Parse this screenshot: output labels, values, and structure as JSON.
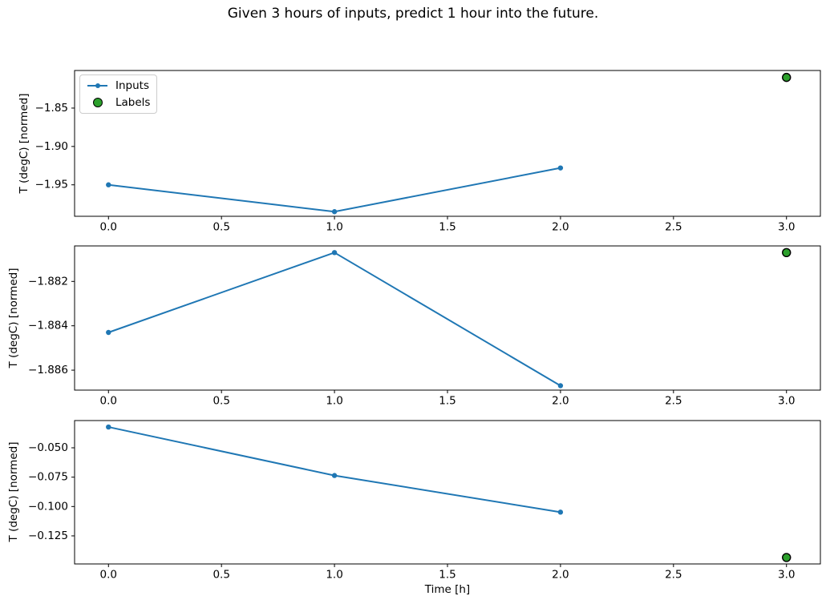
{
  "title": "Given 3 hours of inputs, predict 1 hour into the future.",
  "legend": {
    "position": "upper left",
    "items": [
      {
        "label": "Inputs",
        "marker": "line-dot",
        "color": "#1f77b4"
      },
      {
        "label": "Labels",
        "marker": "circle",
        "fill": "#2ca02c",
        "edge": "#000000"
      }
    ]
  },
  "colors": {
    "inputs_line": "#1f77b4",
    "labels_fill": "#2ca02c",
    "labels_edge": "#000000",
    "spine": "#000000",
    "legend_border": "#cccccc"
  },
  "chart_data": [
    {
      "type": "line",
      "ylabel": "T (degC) [normed]",
      "xlabel": "",
      "x": [
        0,
        1,
        2
      ],
      "series": [
        {
          "name": "Inputs",
          "color": "#1f77b4",
          "values": [
            -1.95,
            -1.985,
            -1.928
          ]
        }
      ],
      "label_point": {
        "name": "Labels",
        "x": 3,
        "y": -1.81,
        "fill": "#2ca02c",
        "edge": "#000000"
      },
      "xlim": [
        -0.15,
        3.15
      ],
      "ylim": [
        -1.991,
        -1.801
      ],
      "xticks": {
        "values": [
          0,
          0.5,
          1,
          1.5,
          2,
          2.5,
          3
        ],
        "labels": [
          "0.0",
          "0.5",
          "1.0",
          "1.5",
          "2.0",
          "2.5",
          "3.0"
        ]
      },
      "yticks": {
        "values": [
          -1.85,
          -1.9,
          -1.95
        ],
        "labels": [
          "−1.85",
          "−1.90",
          "−1.95"
        ]
      },
      "grid": false,
      "has_legend": true
    },
    {
      "type": "line",
      "ylabel": "T (degC) [normed]",
      "xlabel": "",
      "x": [
        0,
        1,
        2
      ],
      "series": [
        {
          "name": "Inputs",
          "color": "#1f77b4",
          "values": [
            -1.8843,
            -1.8807,
            -1.8867
          ]
        }
      ],
      "label_point": {
        "name": "Labels",
        "x": 3,
        "y": -1.8807,
        "fill": "#2ca02c",
        "edge": "#000000"
      },
      "xlim": [
        -0.15,
        3.15
      ],
      "ylim": [
        -1.8869,
        -1.8804
      ],
      "xticks": {
        "values": [
          0,
          0.5,
          1,
          1.5,
          2,
          2.5,
          3
        ],
        "labels": [
          "0.0",
          "0.5",
          "1.0",
          "1.5",
          "2.0",
          "2.5",
          "3.0"
        ]
      },
      "yticks": {
        "values": [
          -1.882,
          -1.884,
          -1.886
        ],
        "labels": [
          "−1.882",
          "−1.884",
          "−1.886"
        ]
      },
      "grid": false,
      "has_legend": false
    },
    {
      "type": "line",
      "ylabel": "T (degC) [normed]",
      "xlabel": "Time [h]",
      "x": [
        0,
        1,
        2
      ],
      "series": [
        {
          "name": "Inputs",
          "color": "#1f77b4",
          "values": [
            -0.0323,
            -0.0736,
            -0.1048
          ]
        }
      ],
      "label_point": {
        "name": "Labels",
        "x": 3,
        "y": -0.1434,
        "fill": "#2ca02c",
        "edge": "#000000"
      },
      "xlim": [
        -0.15,
        3.15
      ],
      "ylim": [
        -0.1489,
        -0.0268
      ],
      "xticks": {
        "values": [
          0,
          0.5,
          1,
          1.5,
          2,
          2.5,
          3
        ],
        "labels": [
          "0.0",
          "0.5",
          "1.0",
          "1.5",
          "2.0",
          "2.5",
          "3.0"
        ]
      },
      "yticks": {
        "values": [
          -0.05,
          -0.075,
          -0.1,
          -0.125
        ],
        "labels": [
          "−0.050",
          "−0.075",
          "−0.100",
          "−0.125"
        ]
      },
      "grid": false,
      "has_legend": false
    }
  ]
}
